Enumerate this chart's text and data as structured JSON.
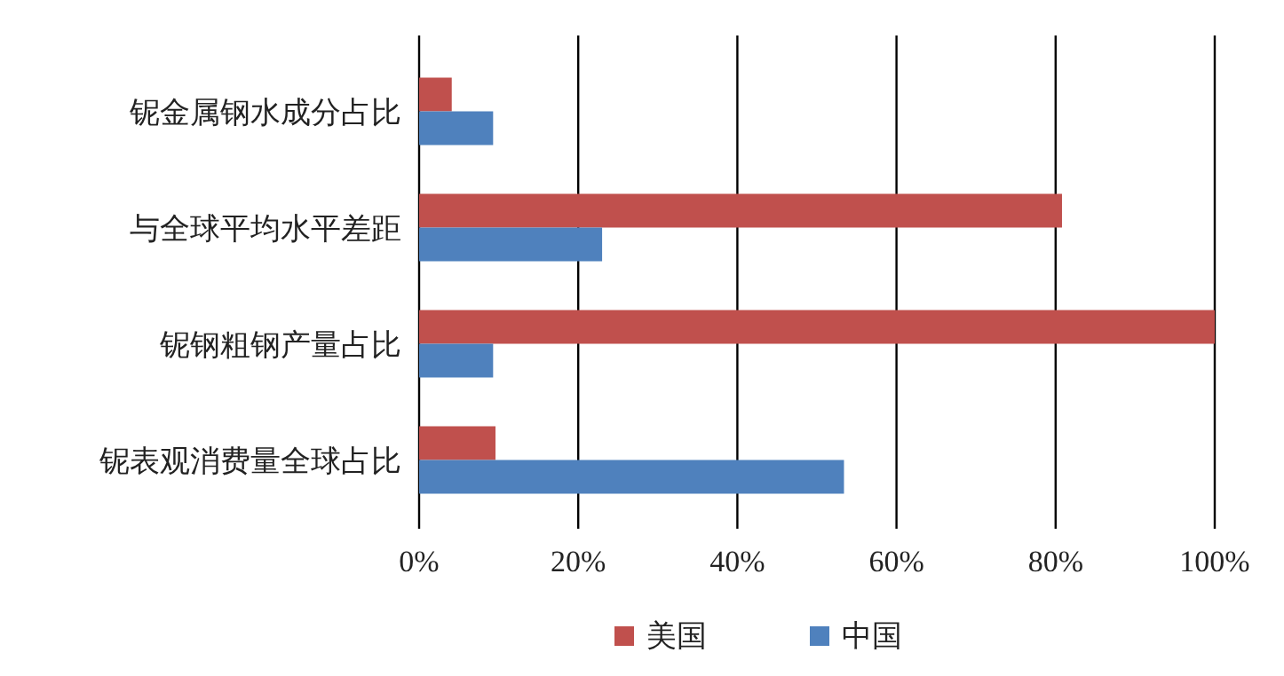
{
  "chart_data": {
    "type": "bar",
    "orientation": "horizontal",
    "categories": [
      "铌金属钢水成分占比",
      "与全球平均水平差距",
      "铌钢粗钢产量占比",
      "铌表观消费量全球占比"
    ],
    "series": [
      {
        "name": "美国",
        "color": "#c0504d",
        "values": [
          4.1,
          80.8,
          100,
          9.6
        ]
      },
      {
        "name": "中国",
        "color": "#4f81bd",
        "values": [
          9.3,
          23.0,
          9.3,
          53.4
        ]
      }
    ],
    "xlim": [
      0,
      100
    ],
    "xticks": [
      {
        "value": 0,
        "label": "0%"
      },
      {
        "value": 20,
        "label": "20%"
      },
      {
        "value": 40,
        "label": "40%"
      },
      {
        "value": 60,
        "label": "60%"
      },
      {
        "value": 80,
        "label": "80%"
      },
      {
        "value": 100,
        "label": "100%"
      }
    ],
    "grid": "x",
    "legend": "bottom"
  }
}
